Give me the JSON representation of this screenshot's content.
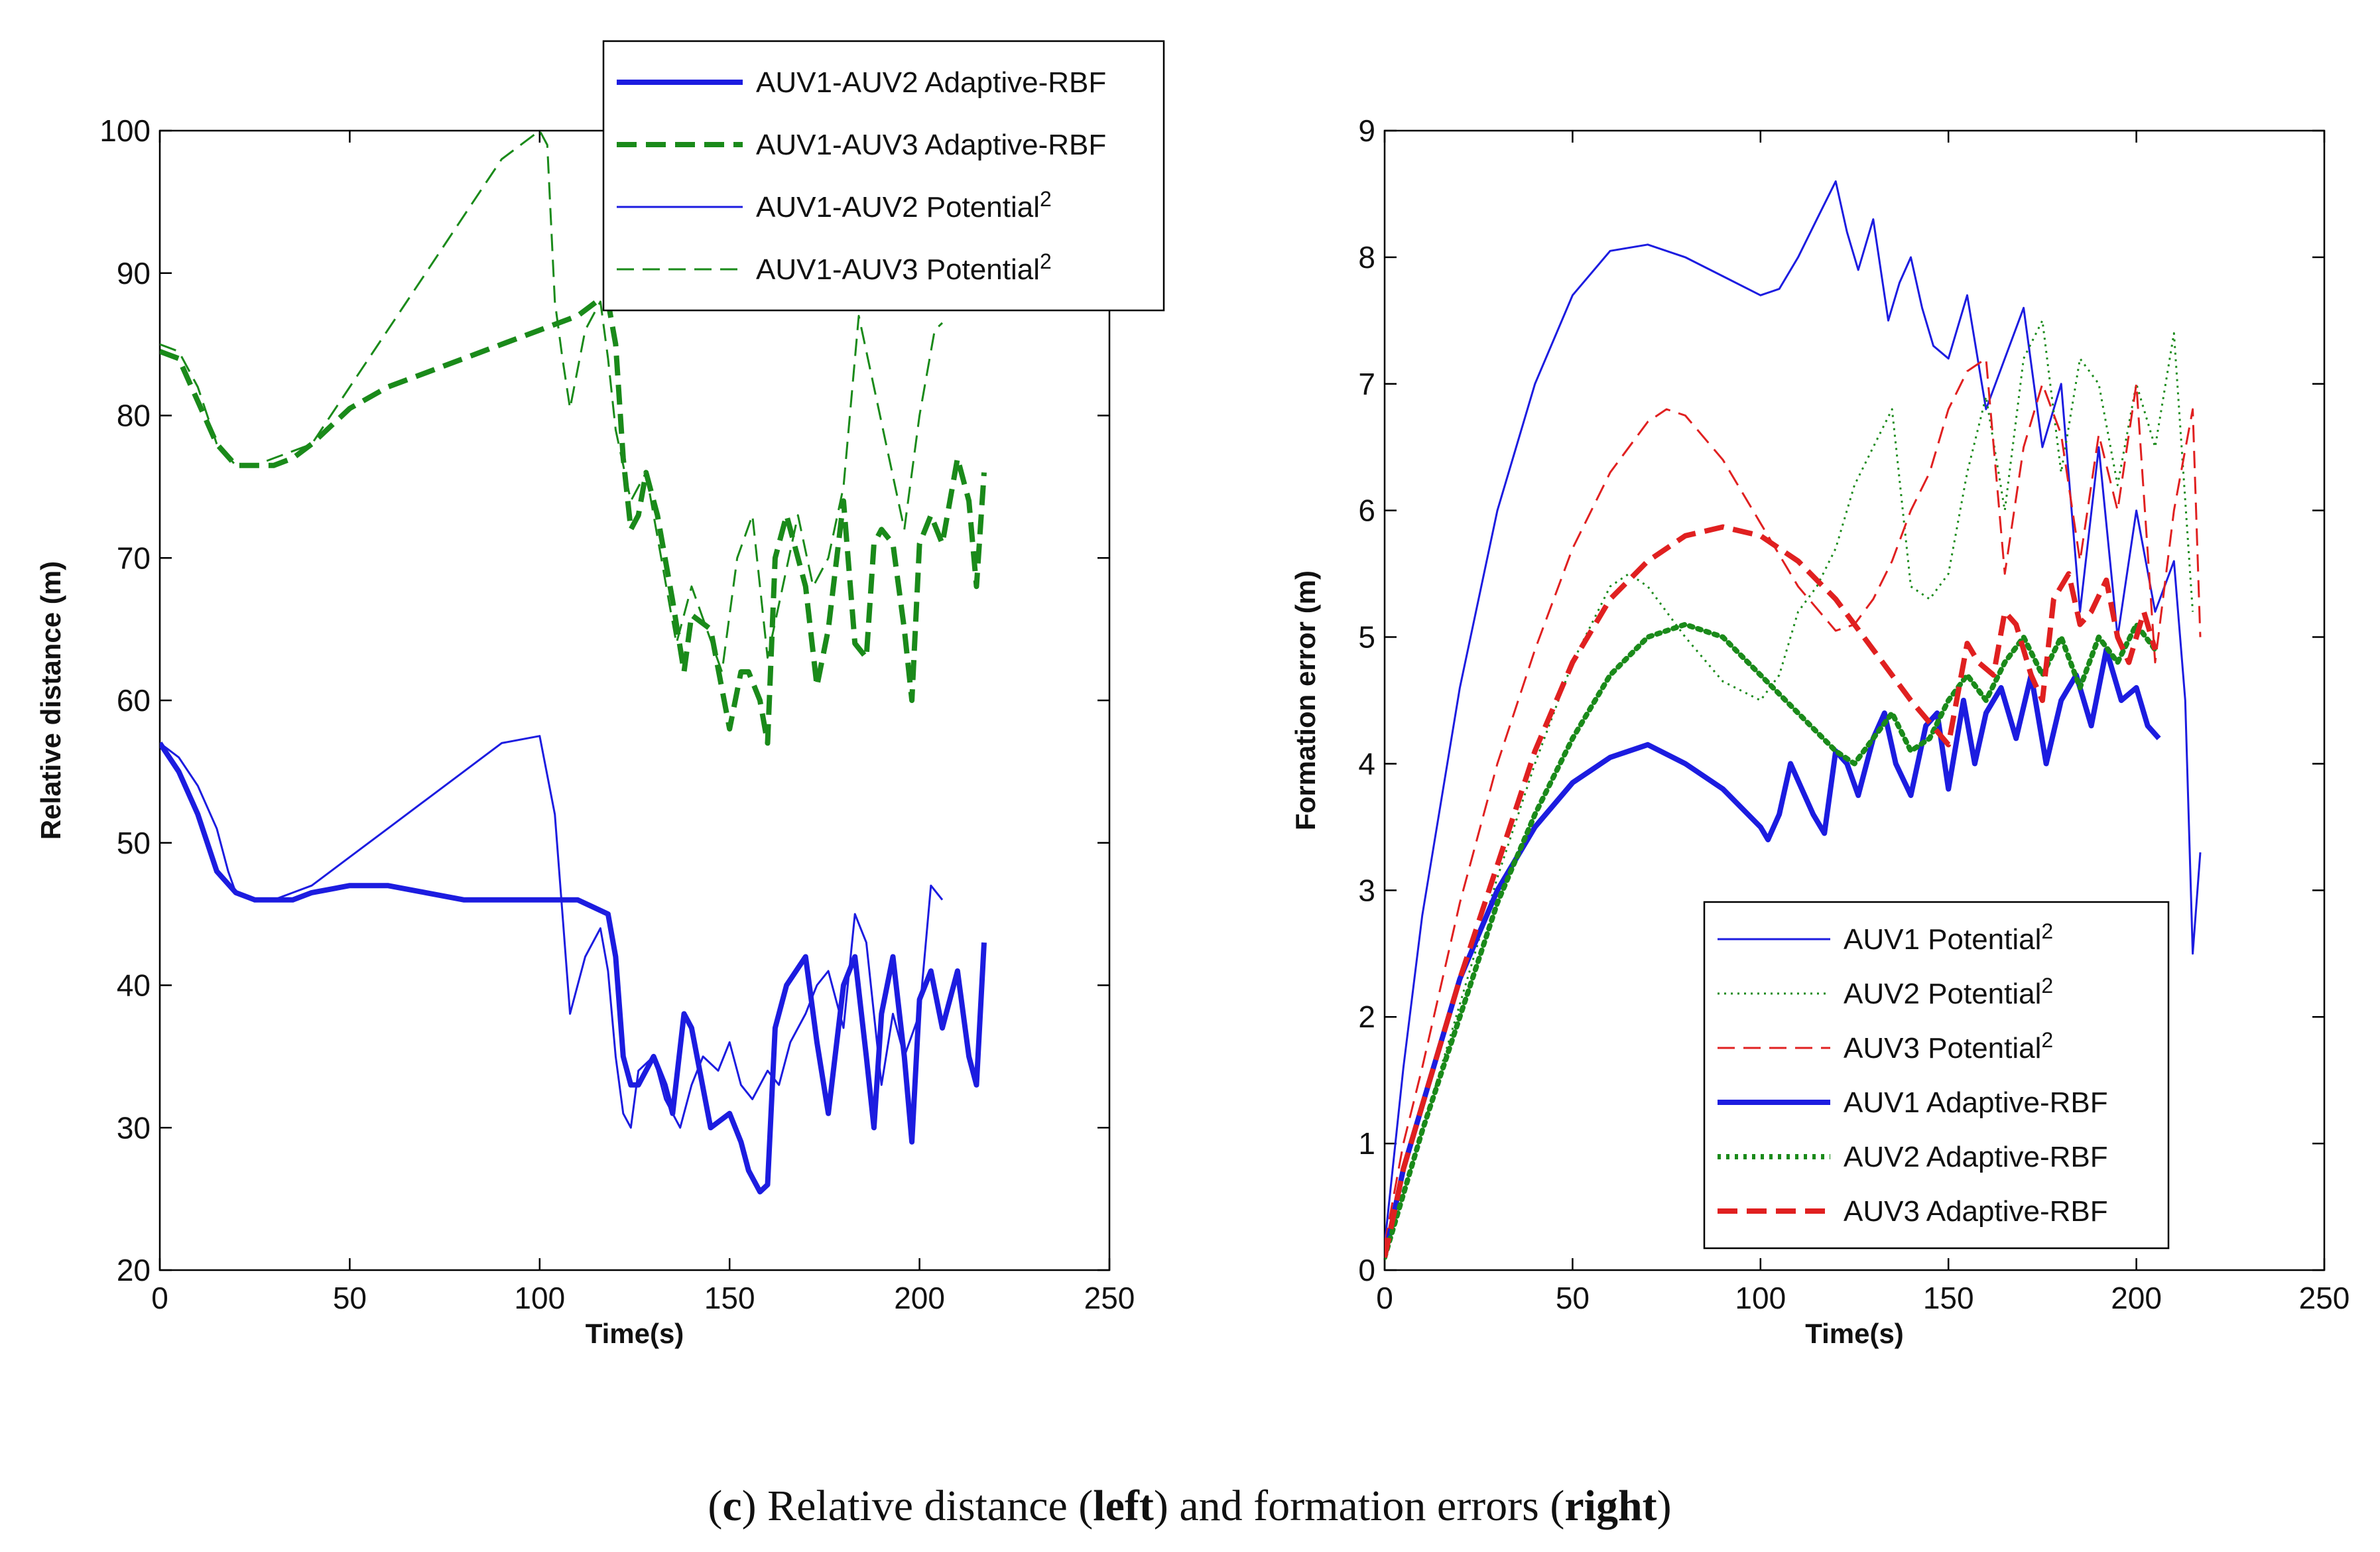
{
  "caption": {
    "prefix": "(",
    "letter": "c",
    "mid1": ") Relative distance (",
    "left_word": "left",
    "mid2": ") and formation errors (",
    "right_word": "right",
    "suffix": ")"
  },
  "chart_data": [
    {
      "type": "line",
      "title": "",
      "xlabel": "Time(s)",
      "ylabel": "Relative distance (m)",
      "xlim": [
        0,
        250
      ],
      "ylim": [
        20,
        100
      ],
      "xticks": [
        0,
        50,
        100,
        150,
        200,
        250
      ],
      "yticks": [
        20,
        30,
        40,
        50,
        60,
        70,
        80,
        90,
        100
      ],
      "legend_position": "top-right",
      "series": [
        {
          "name": "AUV1-AUV2 Adaptive-RBF",
          "label_main": "AUV1-AUV2 Adaptive-RBF",
          "label_sup": "",
          "color": "#1c1ce0",
          "style": "solid",
          "weight": "thick",
          "x": [
            0,
            5,
            10,
            15,
            20,
            25,
            30,
            35,
            40,
            50,
            60,
            70,
            80,
            90,
            100,
            110,
            118,
            120,
            122,
            124,
            126,
            128,
            130,
            133,
            135,
            138,
            140,
            145,
            150,
            153,
            155,
            158,
            160,
            162,
            165,
            170,
            173,
            176,
            180,
            183,
            186,
            188,
            190,
            193,
            196,
            198,
            200,
            203,
            206,
            210,
            213,
            215,
            217
          ],
          "y": [
            57,
            55,
            52,
            48,
            46.5,
            46,
            46,
            46,
            46.5,
            47,
            47,
            46.5,
            46,
            46,
            46,
            46,
            45,
            42,
            35,
            33,
            33,
            34,
            35,
            33,
            31,
            38,
            37,
            30,
            31,
            29,
            27,
            25.5,
            26,
            37,
            40,
            42,
            36,
            31,
            40,
            42,
            35,
            30,
            38,
            42,
            35,
            29,
            39,
            41,
            37,
            41,
            35,
            33,
            43
          ]
        },
        {
          "name": "AUV1-AUV3 Adaptive-RBF",
          "label_main": "AUV1-AUV3 Adaptive-RBF",
          "label_sup": "",
          "color": "#1a8a1a",
          "style": "dashed",
          "weight": "thick",
          "x": [
            0,
            5,
            10,
            15,
            20,
            25,
            30,
            35,
            40,
            50,
            60,
            70,
            80,
            90,
            100,
            110,
            115,
            118,
            120,
            122,
            124,
            126,
            128,
            131,
            135,
            138,
            140,
            145,
            150,
            153,
            155,
            158,
            160,
            162,
            165,
            170,
            173,
            176,
            180,
            183,
            186,
            188,
            190,
            193,
            196,
            198,
            200,
            203,
            206,
            210,
            213,
            215,
            217
          ],
          "y": [
            84.5,
            84,
            81,
            78,
            76.5,
            76.5,
            76.5,
            77,
            78,
            80.5,
            82,
            83,
            84,
            85,
            86,
            87,
            88,
            88,
            85,
            77,
            72,
            73,
            76,
            73,
            67,
            62,
            66,
            65,
            58,
            62,
            62,
            60,
            57,
            70,
            73,
            68,
            61,
            65,
            74,
            64,
            63,
            71,
            72,
            71,
            65,
            60,
            71,
            73,
            71,
            77,
            74,
            68,
            76
          ]
        },
        {
          "name": "AUV1-AUV2 Potential2",
          "label_main": "AUV1-AUV2 Potential",
          "label_sup": "2",
          "color": "#1c1ce0",
          "style": "solid",
          "weight": "thin",
          "x": [
            0,
            5,
            10,
            15,
            18,
            20,
            25,
            30,
            35,
            40,
            50,
            60,
            70,
            80,
            90,
            100,
            104,
            106,
            108,
            112,
            116,
            118,
            120,
            122,
            124,
            126,
            130,
            133,
            137,
            140,
            143,
            147,
            150,
            153,
            156,
            160,
            163,
            166,
            170,
            173,
            176,
            180,
            183,
            186,
            190,
            193,
            196,
            200,
            203,
            206
          ],
          "y": [
            57,
            56,
            54,
            51,
            48,
            46.5,
            46,
            46,
            46.5,
            47,
            49,
            51,
            53,
            55,
            57,
            57.5,
            52,
            45,
            38,
            42,
            44,
            41,
            35,
            31,
            30,
            34,
            35,
            32,
            30,
            33,
            35,
            34,
            36,
            33,
            32,
            34,
            33,
            36,
            38,
            40,
            41,
            37,
            45,
            43,
            33,
            38,
            35,
            38,
            47,
            46
          ]
        },
        {
          "name": "AUV1-AUV3 Potential2",
          "label_main": "AUV1-AUV3 Potential",
          "label_sup": "2",
          "color": "#1a8a1a",
          "style": "dashed",
          "weight": "thin",
          "x": [
            0,
            5,
            10,
            15,
            20,
            25,
            30,
            35,
            40,
            50,
            60,
            70,
            80,
            90,
            100,
            102,
            104,
            106,
            108,
            112,
            116,
            118,
            120,
            124,
            128,
            132,
            136,
            140,
            144,
            148,
            152,
            156,
            160,
            164,
            168,
            172,
            176,
            180,
            184,
            188,
            192,
            196,
            200,
            204,
            206
          ],
          "y": [
            85,
            84.5,
            82,
            78,
            76.5,
            76.5,
            77,
            77.5,
            78,
            82,
            86,
            90,
            94,
            98,
            100,
            99,
            88,
            84,
            80.5,
            86,
            88,
            84,
            79,
            74,
            76,
            70,
            64,
            68,
            65,
            62,
            70,
            73,
            63,
            68,
            73,
            68,
            70,
            75,
            87,
            82,
            77,
            72,
            80,
            86,
            86.5
          ]
        }
      ]
    },
    {
      "type": "line",
      "title": "",
      "xlabel": "Time(s)",
      "ylabel": "Formation error (m)",
      "xlim": [
        0,
        250
      ],
      "ylim": [
        0,
        9
      ],
      "xticks": [
        0,
        50,
        100,
        150,
        200,
        250
      ],
      "yticks": [
        0,
        1,
        2,
        3,
        4,
        5,
        6,
        7,
        8,
        9
      ],
      "legend_position": "bottom-right",
      "series": [
        {
          "name": "AUV1 Potential2",
          "label_main": "AUV1 Potential",
          "label_sup": "2",
          "color": "#1c1ce0",
          "style": "solid",
          "weight": "thin",
          "x": [
            0,
            5,
            10,
            20,
            30,
            40,
            50,
            60,
            70,
            80,
            90,
            100,
            105,
            110,
            115,
            120,
            123,
            126,
            130,
            134,
            137,
            140,
            143,
            146,
            150,
            155,
            160,
            165,
            170,
            175,
            180,
            185,
            190,
            195,
            200,
            205,
            210,
            213,
            215,
            217
          ],
          "y": [
            0.2,
            1.6,
            2.8,
            4.6,
            6,
            7,
            7.7,
            8.05,
            8.1,
            8.0,
            7.85,
            7.7,
            7.75,
            8.0,
            8.3,
            8.6,
            8.2,
            7.9,
            8.3,
            7.5,
            7.8,
            8.0,
            7.6,
            7.3,
            7.2,
            7.7,
            6.8,
            7.2,
            7.6,
            6.5,
            7.0,
            5.2,
            6.5,
            5.0,
            6.0,
            5.2,
            5.6,
            4.5,
            2.5,
            3.3
          ]
        },
        {
          "name": "AUV2 Potential2",
          "label_main": "AUV2 Potential",
          "label_sup": "2",
          "color": "#1a8a1a",
          "style": "dotted",
          "weight": "thin",
          "x": [
            0,
            5,
            10,
            20,
            30,
            40,
            50,
            60,
            65,
            70,
            80,
            90,
            100,
            105,
            110,
            115,
            120,
            125,
            130,
            135,
            140,
            145,
            150,
            155,
            160,
            165,
            170,
            175,
            180,
            185,
            190,
            195,
            200,
            205,
            210,
            215
          ],
          "y": [
            0.2,
            0.6,
            1.1,
            2.1,
            3.1,
            4.0,
            4.8,
            5.4,
            5.5,
            5.4,
            5.0,
            4.65,
            4.5,
            4.7,
            5.2,
            5.4,
            5.7,
            6.2,
            6.5,
            6.8,
            5.4,
            5.3,
            5.5,
            6.3,
            6.9,
            6.0,
            7.2,
            7.5,
            6.3,
            7.2,
            7.0,
            6.2,
            7.0,
            6.5,
            7.4,
            5.2
          ]
        },
        {
          "name": "AUV3 Potential2",
          "label_main": "AUV3 Potential",
          "label_sup": "2",
          "color": "#e02020",
          "style": "dashed",
          "weight": "thin",
          "x": [
            0,
            5,
            10,
            20,
            30,
            40,
            50,
            60,
            70,
            75,
            80,
            90,
            100,
            110,
            120,
            125,
            130,
            135,
            140,
            145,
            150,
            155,
            160,
            165,
            170,
            175,
            180,
            185,
            190,
            195,
            200,
            205,
            210,
            215,
            217
          ],
          "y": [
            0.2,
            1.0,
            1.6,
            2.9,
            4.0,
            4.9,
            5.7,
            6.3,
            6.7,
            6.8,
            6.75,
            6.4,
            5.9,
            5.4,
            5.05,
            5.1,
            5.3,
            5.6,
            6.0,
            6.3,
            6.8,
            7.1,
            7.2,
            5.5,
            6.5,
            7.0,
            6.6,
            5.6,
            6.6,
            6.0,
            7.0,
            4.8,
            6.0,
            6.8,
            5.0
          ]
        },
        {
          "name": "AUV1 Adaptive-RBF",
          "label_main": "AUV1 Adaptive-RBF",
          "label_sup": "",
          "color": "#1c1ce0",
          "style": "solid",
          "weight": "thick",
          "x": [
            0,
            5,
            10,
            20,
            30,
            40,
            50,
            60,
            70,
            80,
            90,
            100,
            102,
            105,
            108,
            111,
            114,
            117,
            120,
            123,
            126,
            130,
            133,
            136,
            140,
            144,
            147,
            150,
            154,
            157,
            160,
            164,
            168,
            172,
            176,
            180,
            184,
            188,
            192,
            196,
            200,
            203,
            206
          ],
          "y": [
            0.1,
            0.8,
            1.3,
            2.3,
            3.0,
            3.5,
            3.85,
            4.05,
            4.15,
            4.0,
            3.8,
            3.5,
            3.4,
            3.6,
            4.0,
            3.8,
            3.6,
            3.45,
            4.1,
            4.0,
            3.75,
            4.2,
            4.4,
            4.0,
            3.75,
            4.3,
            4.4,
            3.8,
            4.5,
            4.0,
            4.4,
            4.6,
            4.2,
            4.7,
            4.0,
            4.5,
            4.7,
            4.3,
            4.9,
            4.5,
            4.6,
            4.3,
            4.2
          ]
        },
        {
          "name": "AUV2 Adaptive-RBF",
          "label_main": "AUV2 Adaptive-RBF",
          "label_sup": "",
          "color": "#1a8a1a",
          "style": "dotted",
          "weight": "thick",
          "x": [
            0,
            5,
            10,
            20,
            30,
            40,
            50,
            60,
            70,
            80,
            90,
            100,
            110,
            120,
            125,
            130,
            135,
            140,
            145,
            150,
            155,
            160,
            165,
            170,
            175,
            180,
            185,
            190,
            195,
            200,
            205
          ],
          "y": [
            0.1,
            0.6,
            1.1,
            2.0,
            2.9,
            3.6,
            4.2,
            4.7,
            5.0,
            5.1,
            5.0,
            4.7,
            4.4,
            4.1,
            4.0,
            4.2,
            4.4,
            4.1,
            4.2,
            4.5,
            4.7,
            4.5,
            4.8,
            5.0,
            4.7,
            5.0,
            4.6,
            5.0,
            4.8,
            5.1,
            4.9
          ]
        },
        {
          "name": "AUV3 Adaptive-RBF",
          "label_main": "AUV3 Adaptive-RBF",
          "label_sup": "",
          "color": "#e02020",
          "style": "dashed",
          "weight": "thick",
          "x": [
            0,
            5,
            10,
            20,
            30,
            40,
            50,
            60,
            70,
            80,
            90,
            100,
            110,
            120,
            130,
            140,
            150,
            155,
            158,
            162,
            165,
            168,
            172,
            175,
            178,
            182,
            185,
            188,
            192,
            195,
            198,
            202,
            205
          ],
          "y": [
            0.1,
            0.8,
            1.3,
            2.3,
            3.2,
            4.1,
            4.8,
            5.3,
            5.6,
            5.8,
            5.87,
            5.8,
            5.6,
            5.3,
            4.9,
            4.5,
            4.15,
            4.95,
            4.8,
            4.7,
            5.2,
            5.1,
            4.7,
            4.5,
            5.3,
            5.5,
            5.1,
            5.2,
            5.45,
            5.0,
            4.8,
            5.2,
            4.9
          ]
        }
      ]
    }
  ]
}
